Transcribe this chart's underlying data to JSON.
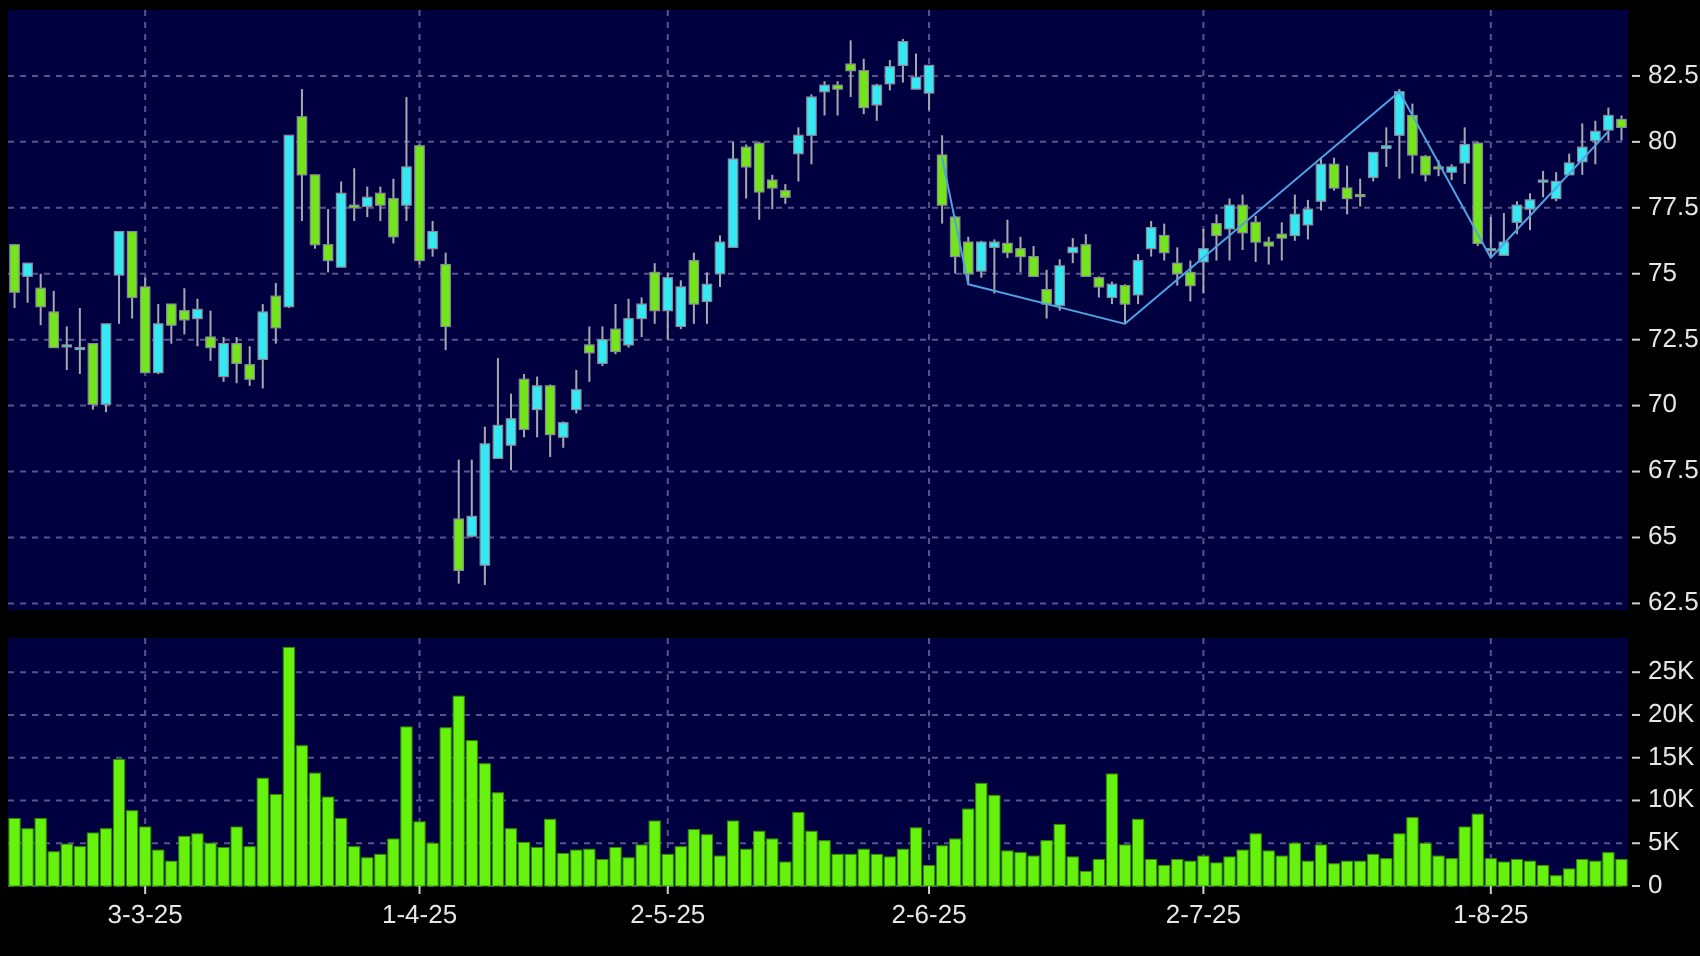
{
  "chart_data": [
    {
      "type": "candlestick",
      "grid": true,
      "tick_labels": "y",
      "ylim": [
        62.25,
        85
      ],
      "yticks": [
        62.5,
        65,
        67.5,
        70,
        72.5,
        75,
        77.5,
        80,
        82.5
      ],
      "categories": [
        null,
        null,
        null,
        null,
        null,
        null,
        null,
        null,
        null,
        null,
        null,
        null,
        null,
        null,
        null,
        null,
        null,
        null,
        null,
        null,
        null,
        null,
        null,
        null,
        null,
        null,
        null,
        null,
        null,
        null,
        null,
        null,
        null,
        null,
        null,
        null,
        null,
        null,
        null,
        null,
        null,
        null,
        null,
        null,
        null,
        null,
        null,
        null,
        null,
        null,
        null,
        null,
        null,
        null,
        null,
        null,
        null,
        null,
        null,
        null,
        null,
        null,
        null,
        null,
        null,
        null,
        null,
        null,
        null,
        null,
        null,
        null,
        null,
        null,
        null,
        null,
        null,
        null,
        null,
        null,
        null,
        null,
        null,
        null,
        null,
        null,
        null,
        null,
        null,
        null,
        null,
        null,
        null,
        null,
        null,
        null,
        null,
        null,
        null,
        null,
        null,
        null,
        null,
        null,
        null,
        null,
        null,
        null,
        null,
        null,
        null,
        null,
        null,
        null,
        null,
        null,
        null,
        null,
        null,
        null,
        null,
        null,
        null,
        null
      ],
      "ohlc": [
        [
          76.1,
          76.1,
          73.7,
          74.3
        ],
        [
          74.9,
          75.4,
          73.9,
          75.4
        ],
        [
          74.45,
          75.0,
          73.05,
          73.75
        ],
        [
          73.55,
          74.35,
          72.2,
          72.2
        ],
        [
          72.3,
          73.0,
          71.35,
          72.3
        ],
        [
          72.2,
          73.7,
          71.2,
          72.2
        ],
        [
          72.35,
          72.35,
          69.85,
          70.05
        ],
        [
          70.05,
          73.1,
          69.75,
          73.1
        ],
        [
          74.95,
          76.6,
          73.1,
          76.6
        ],
        [
          76.6,
          76.6,
          73.3,
          74.1
        ],
        [
          74.5,
          74.85,
          71.25,
          71.25
        ],
        [
          71.25,
          73.85,
          71.2,
          73.1
        ],
        [
          73.85,
          73.85,
          72.35,
          73.05
        ],
        [
          73.6,
          74.45,
          72.7,
          73.25
        ],
        [
          73.3,
          74.05,
          72.25,
          73.65
        ],
        [
          72.6,
          73.6,
          71.7,
          72.2
        ],
        [
          71.1,
          72.6,
          70.9,
          72.35
        ],
        [
          72.35,
          72.6,
          70.85,
          71.6
        ],
        [
          71.55,
          72.25,
          70.75,
          71.0
        ],
        [
          71.75,
          73.85,
          70.65,
          73.55
        ],
        [
          74.15,
          74.65,
          72.35,
          72.95
        ],
        [
          73.75,
          80.25,
          73.7,
          80.25
        ],
        [
          80.95,
          82.0,
          77.0,
          78.75
        ],
        [
          78.75,
          78.75,
          75.95,
          76.1
        ],
        [
          76.1,
          77.45,
          75.05,
          75.5
        ],
        [
          75.25,
          78.5,
          75.25,
          78.05
        ],
        [
          77.6,
          79.0,
          77.0,
          77.5
        ],
        [
          77.55,
          78.3,
          77.15,
          77.9
        ],
        [
          78.05,
          78.3,
          77.0,
          77.6
        ],
        [
          77.85,
          78.6,
          76.15,
          76.4
        ],
        [
          77.6,
          81.7,
          77.0,
          79.05
        ],
        [
          79.85,
          79.9,
          75.35,
          75.5
        ],
        [
          75.95,
          77.0,
          75.65,
          76.6
        ],
        [
          75.35,
          75.8,
          72.1,
          73.0
        ],
        [
          65.7,
          67.95,
          63.25,
          63.75
        ],
        [
          65.05,
          67.95,
          65.0,
          65.8
        ],
        [
          63.95,
          69.2,
          63.2,
          68.55
        ],
        [
          68.0,
          71.8,
          68.0,
          69.25
        ],
        [
          68.5,
          70.45,
          67.55,
          69.5
        ],
        [
          71.0,
          71.2,
          68.8,
          69.1
        ],
        [
          69.85,
          71.1,
          68.8,
          70.75
        ],
        [
          70.75,
          70.8,
          68.05,
          68.9
        ],
        [
          68.8,
          69.4,
          68.4,
          69.35
        ],
        [
          69.85,
          71.35,
          69.7,
          70.6
        ],
        [
          72.3,
          73.0,
          70.9,
          72.0
        ],
        [
          71.6,
          73.0,
          71.5,
          72.5
        ],
        [
          72.9,
          73.85,
          71.95,
          72.05
        ],
        [
          72.3,
          74.05,
          72.2,
          73.3
        ],
        [
          73.3,
          74.1,
          72.6,
          73.85
        ],
        [
          75.05,
          75.4,
          73.1,
          73.6
        ],
        [
          73.6,
          75.05,
          72.5,
          74.85
        ],
        [
          73.0,
          74.75,
          72.9,
          74.5
        ],
        [
          75.5,
          75.8,
          73.1,
          73.85
        ],
        [
          73.95,
          75.05,
          73.1,
          74.6
        ],
        [
          75.0,
          76.45,
          74.5,
          76.2
        ],
        [
          76.0,
          80.0,
          76.0,
          79.35
        ],
        [
          79.8,
          79.9,
          77.85,
          79.05
        ],
        [
          79.95,
          80.0,
          77.05,
          78.1
        ],
        [
          78.55,
          78.75,
          77.45,
          78.25
        ],
        [
          78.15,
          78.4,
          77.65,
          77.9
        ],
        [
          79.55,
          80.55,
          78.5,
          80.25
        ],
        [
          80.25,
          81.8,
          79.15,
          81.7
        ],
        [
          81.9,
          82.3,
          81.0,
          82.15
        ],
        [
          82.15,
          82.3,
          81.0,
          82.0
        ],
        [
          82.95,
          83.85,
          81.7,
          82.7
        ],
        [
          82.7,
          83.15,
          81.05,
          81.3
        ],
        [
          81.4,
          82.2,
          80.8,
          82.15
        ],
        [
          82.2,
          83.1,
          81.95,
          82.85
        ],
        [
          82.9,
          83.9,
          82.25,
          83.8
        ],
        [
          82.0,
          83.35,
          82.0,
          82.45
        ],
        [
          81.85,
          82.9,
          81.2,
          82.9
        ],
        [
          79.5,
          80.25,
          76.9,
          77.6
        ],
        [
          77.15,
          77.2,
          75.0,
          75.65
        ],
        [
          76.2,
          76.4,
          74.6,
          75.0
        ],
        [
          75.1,
          76.25,
          74.85,
          76.2
        ],
        [
          76.0,
          76.3,
          74.25,
          76.2
        ],
        [
          76.15,
          77.05,
          75.6,
          75.8
        ],
        [
          75.95,
          76.4,
          75.05,
          75.65
        ],
        [
          75.65,
          76.05,
          74.9,
          74.9
        ],
        [
          74.4,
          75.15,
          73.3,
          73.85
        ],
        [
          73.8,
          75.55,
          73.6,
          75.3
        ],
        [
          75.8,
          76.35,
          75.4,
          76.0
        ],
        [
          76.1,
          76.5,
          74.9,
          74.9
        ],
        [
          74.85,
          74.9,
          74.1,
          74.5
        ],
        [
          74.1,
          74.7,
          73.85,
          74.6
        ],
        [
          74.55,
          74.6,
          73.1,
          73.85
        ],
        [
          74.2,
          75.75,
          73.85,
          75.5
        ],
        [
          75.95,
          77.0,
          75.65,
          76.75
        ],
        [
          76.45,
          76.9,
          75.5,
          75.8
        ],
        [
          75.4,
          76.0,
          74.55,
          75.0
        ],
        [
          75.05,
          75.5,
          73.95,
          74.55
        ],
        [
          75.45,
          76.7,
          74.25,
          75.95
        ],
        [
          76.9,
          77.25,
          75.5,
          76.45
        ],
        [
          76.7,
          77.85,
          75.5,
          77.6
        ],
        [
          77.6,
          78.0,
          75.9,
          76.55
        ],
        [
          76.95,
          77.2,
          75.45,
          76.2
        ],
        [
          76.2,
          76.4,
          75.35,
          76.05
        ],
        [
          76.5,
          76.95,
          75.5,
          76.35
        ],
        [
          76.45,
          78.0,
          76.25,
          77.25
        ],
        [
          76.85,
          77.8,
          76.3,
          77.45
        ],
        [
          77.75,
          79.4,
          77.4,
          79.15
        ],
        [
          79.15,
          79.4,
          78.15,
          78.25
        ],
        [
          78.25,
          79.1,
          77.25,
          77.85
        ],
        [
          78.0,
          78.6,
          77.55,
          77.95
        ],
        [
          78.65,
          79.6,
          78.5,
          79.6
        ],
        [
          79.75,
          80.55,
          79.05,
          79.85
        ],
        [
          80.25,
          82.0,
          78.6,
          81.9
        ],
        [
          81.0,
          81.45,
          78.8,
          79.5
        ],
        [
          79.45,
          79.5,
          78.5,
          78.75
        ],
        [
          79.05,
          79.3,
          78.7,
          79.0
        ],
        [
          78.85,
          79.15,
          78.55,
          79.05
        ],
        [
          79.2,
          80.55,
          78.4,
          79.9
        ],
        [
          79.95,
          80.0,
          76.05,
          76.15
        ],
        [
          75.95,
          77.15,
          75.65,
          75.95
        ],
        [
          75.7,
          77.3,
          75.7,
          76.2
        ],
        [
          76.95,
          77.75,
          76.5,
          77.6
        ],
        [
          77.45,
          78.05,
          76.65,
          77.8
        ],
        [
          78.5,
          78.9,
          77.9,
          78.55
        ],
        [
          77.85,
          78.85,
          77.75,
          78.5
        ],
        [
          78.75,
          79.55,
          78.75,
          79.2
        ],
        [
          79.25,
          80.7,
          78.75,
          79.8
        ],
        [
          80.05,
          80.8,
          79.15,
          80.4
        ],
        [
          80.45,
          81.3,
          80.05,
          81.0
        ],
        [
          80.85,
          81.0,
          80.05,
          80.55
        ]
      ],
      "colors": [
        "#74e41c",
        "#35e9f4",
        "#74e41c",
        "#74e41c",
        "#35e9f4",
        "#35e9f4",
        "#74e41c",
        "#35e9f4",
        "#35e9f4",
        "#74e41c",
        "#74e41c",
        "#35e9f4",
        "#74e41c",
        "#74e41c",
        "#35e9f4",
        "#74e41c",
        "#35e9f4",
        "#74e41c",
        "#74e41c",
        "#35e9f4",
        "#74e41c",
        "#35e9f4",
        "#74e41c",
        "#74e41c",
        "#74e41c",
        "#35e9f4",
        "#74e41c",
        "#35e9f4",
        "#74e41c",
        "#74e41c",
        "#35e9f4",
        "#74e41c",
        "#35e9f4",
        "#74e41c",
        "#74e41c",
        "#35e9f4",
        "#35e9f4",
        "#35e9f4",
        "#35e9f4",
        "#74e41c",
        "#35e9f4",
        "#74e41c",
        "#35e9f4",
        "#35e9f4",
        "#74e41c",
        "#35e9f4",
        "#74e41c",
        "#35e9f4",
        "#35e9f4",
        "#74e41c",
        "#35e9f4",
        "#35e9f4",
        "#74e41c",
        "#35e9f4",
        "#35e9f4",
        "#35e9f4",
        "#74e41c",
        "#74e41c",
        "#74e41c",
        "#74e41c",
        "#35e9f4",
        "#35e9f4",
        "#35e9f4",
        "#74e41c",
        "#74e41c",
        "#74e41c",
        "#35e9f4",
        "#35e9f4",
        "#35e9f4",
        "#35e9f4",
        "#35e9f4",
        "#74e41c",
        "#74e41c",
        "#74e41c",
        "#35e9f4",
        "#35e9f4",
        "#74e41c",
        "#74e41c",
        "#74e41c",
        "#74e41c",
        "#35e9f4",
        "#35e9f4",
        "#74e41c",
        "#74e41c",
        "#35e9f4",
        "#74e41c",
        "#35e9f4",
        "#35e9f4",
        "#74e41c",
        "#74e41c",
        "#74e41c",
        "#35e9f4",
        "#74e41c",
        "#35e9f4",
        "#74e41c",
        "#74e41c",
        "#74e41c",
        "#74e41c",
        "#35e9f4",
        "#35e9f4",
        "#35e9f4",
        "#74e41c",
        "#74e41c",
        "#74e41c",
        "#35e9f4",
        "#35e9f4",
        "#35e9f4",
        "#74e41c",
        "#74e41c",
        "#74e41c",
        "#35e9f4",
        "#35e9f4",
        "#74e41c",
        "#35e9f4",
        "#35e9f4",
        "#35e9f4",
        "#35e9f4",
        "#35e9f4",
        "#35e9f4",
        "#35e9f4",
        "#35e9f4",
        "#35e9f4",
        "#35e9f4",
        "#74e41c"
      ],
      "series": [
        {
          "type": "line",
          "color": "#4fa3e3",
          "values": [
            null,
            null,
            null,
            null,
            null,
            null,
            null,
            null,
            null,
            null,
            null,
            null,
            null,
            null,
            null,
            null,
            null,
            null,
            null,
            null,
            null,
            null,
            null,
            null,
            null,
            null,
            null,
            null,
            null,
            null,
            null,
            null,
            null,
            null,
            null,
            null,
            null,
            null,
            null,
            null,
            null,
            null,
            null,
            null,
            null,
            null,
            null,
            null,
            null,
            null,
            null,
            null,
            null,
            null,
            null,
            null,
            null,
            null,
            null,
            null,
            null,
            null,
            null,
            null,
            null,
            null,
            null,
            null,
            null,
            null,
            null,
            79.4,
            null,
            74.6,
            null,
            null,
            null,
            null,
            null,
            null,
            null,
            null,
            null,
            null,
            null,
            73.1,
            null,
            null,
            null,
            null,
            null,
            null,
            null,
            null,
            null,
            null,
            null,
            null,
            null,
            null,
            null,
            null,
            null,
            null,
            null,
            null,
            81.9,
            null,
            null,
            null,
            null,
            null,
            null,
            75.6,
            null,
            null,
            null,
            null,
            null,
            null,
            null,
            null,
            80.4,
            null
          ]
        }
      ]
    },
    {
      "type": "bar",
      "grid": true,
      "color": "#66f20c",
      "ylim": [
        0,
        29000
      ],
      "yticks": [
        {
          "value": 0,
          "label": "0"
        },
        {
          "value": 5000,
          "label": "5K"
        },
        {
          "value": 10000,
          "label": "10K"
        },
        {
          "value": 15000,
          "label": "15K"
        },
        {
          "value": 20000,
          "label": "20K"
        },
        {
          "value": 25000,
          "label": "25K"
        }
      ],
      "categories": [
        null,
        null,
        null,
        null,
        null,
        null,
        null,
        null,
        null,
        null,
        "3-3-25",
        null,
        null,
        null,
        null,
        null,
        null,
        null,
        null,
        null,
        null,
        null,
        null,
        null,
        null,
        null,
        null,
        null,
        null,
        null,
        null,
        "1-4-25",
        null,
        null,
        null,
        null,
        null,
        null,
        null,
        null,
        null,
        null,
        null,
        null,
        null,
        null,
        null,
        null,
        null,
        null,
        "2-5-25",
        null,
        null,
        null,
        null,
        null,
        null,
        null,
        null,
        null,
        null,
        null,
        null,
        null,
        null,
        null,
        null,
        null,
        null,
        null,
        "2-6-25",
        null,
        null,
        null,
        null,
        null,
        null,
        null,
        null,
        null,
        null,
        null,
        null,
        null,
        null,
        null,
        null,
        null,
        null,
        null,
        null,
        "2-7-25",
        null,
        null,
        null,
        null,
        null,
        null,
        null,
        null,
        null,
        null,
        null,
        null,
        null,
        null,
        null,
        null,
        null,
        null,
        null,
        null,
        null,
        "1-8-25",
        null,
        null,
        null,
        null,
        null,
        null,
        null,
        null,
        null,
        null
      ],
      "values": [
        7900,
        6700,
        7900,
        4000,
        4900,
        4600,
        6200,
        6700,
        14800,
        8800,
        6900,
        4200,
        2900,
        5800,
        6100,
        5000,
        4500,
        6900,
        4600,
        12600,
        10700,
        27900,
        16400,
        13200,
        10400,
        7900,
        4600,
        3300,
        3700,
        5500,
        18600,
        7500,
        5000,
        18500,
        22200,
        17000,
        14300,
        10900,
        6700,
        5100,
        4500,
        7800,
        3800,
        4200,
        4300,
        3100,
        4500,
        3300,
        4800,
        7600,
        3700,
        4600,
        6600,
        6000,
        3500,
        7600,
        4300,
        6400,
        5500,
        2800,
        8600,
        6400,
        5300,
        3700,
        3700,
        4300,
        3700,
        3400,
        4300,
        6800,
        2400,
        4700,
        5500,
        9000,
        12000,
        10600,
        4100,
        3900,
        3500,
        5300,
        7200,
        3400,
        1700,
        3100,
        13100,
        4800,
        7800,
        3100,
        2400,
        3100,
        2900,
        3500,
        2700,
        3400,
        4200,
        6100,
        4100,
        3500,
        5000,
        2900,
        4800,
        2600,
        2900,
        2900,
        3700,
        3200,
        6100,
        8000,
        5000,
        3500,
        3200,
        6900,
        8400,
        3200,
        2800,
        3100,
        2900,
        2400,
        1200,
        2000,
        3100,
        2900,
        3900,
        3100
      ]
    }
  ]
}
